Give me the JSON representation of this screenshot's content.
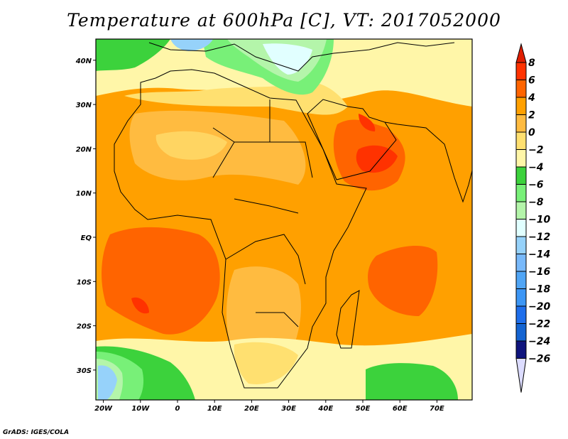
{
  "title": "Temperature at 600hPa [C], VT: 2017052000",
  "credit": "GrADS: IGES/COLA",
  "map": {
    "lon_labels": [
      "20W",
      "10W",
      "0",
      "10E",
      "20E",
      "30E",
      "40E",
      "50E",
      "60E",
      "70E"
    ],
    "lon_values": [
      -20,
      -10,
      0,
      10,
      20,
      30,
      40,
      50,
      60,
      70
    ],
    "lat_labels": [
      "40N",
      "30N",
      "20N",
      "10N",
      "EQ",
      "10S",
      "20S",
      "30S"
    ],
    "lat_values": [
      40,
      30,
      20,
      10,
      0,
      -10,
      -20,
      -30
    ]
  },
  "colorbar": {
    "labels": [
      "8",
      "6",
      "4",
      "2",
      "0",
      "−2",
      "−4",
      "−6",
      "−8",
      "−10",
      "−12",
      "−14",
      "−16",
      "−18",
      "−20",
      "−22",
      "−24",
      "−26"
    ],
    "top_arrow_color": "#e01e00",
    "bottom_arrow_color": "#dcdcff",
    "band_colors": [
      "#ff3200",
      "#ff6400",
      "#ffa000",
      "#ffbb40",
      "#ffe070",
      "#fff6a8",
      "#3cd23c",
      "#78f078",
      "#b4f5aa",
      "#e1ffff",
      "#96d2fa",
      "#78b9fa",
      "#50a5f5",
      "#3c96f5",
      "#1e6eeb",
      "#1464d2",
      "#0f147d"
    ]
  }
}
